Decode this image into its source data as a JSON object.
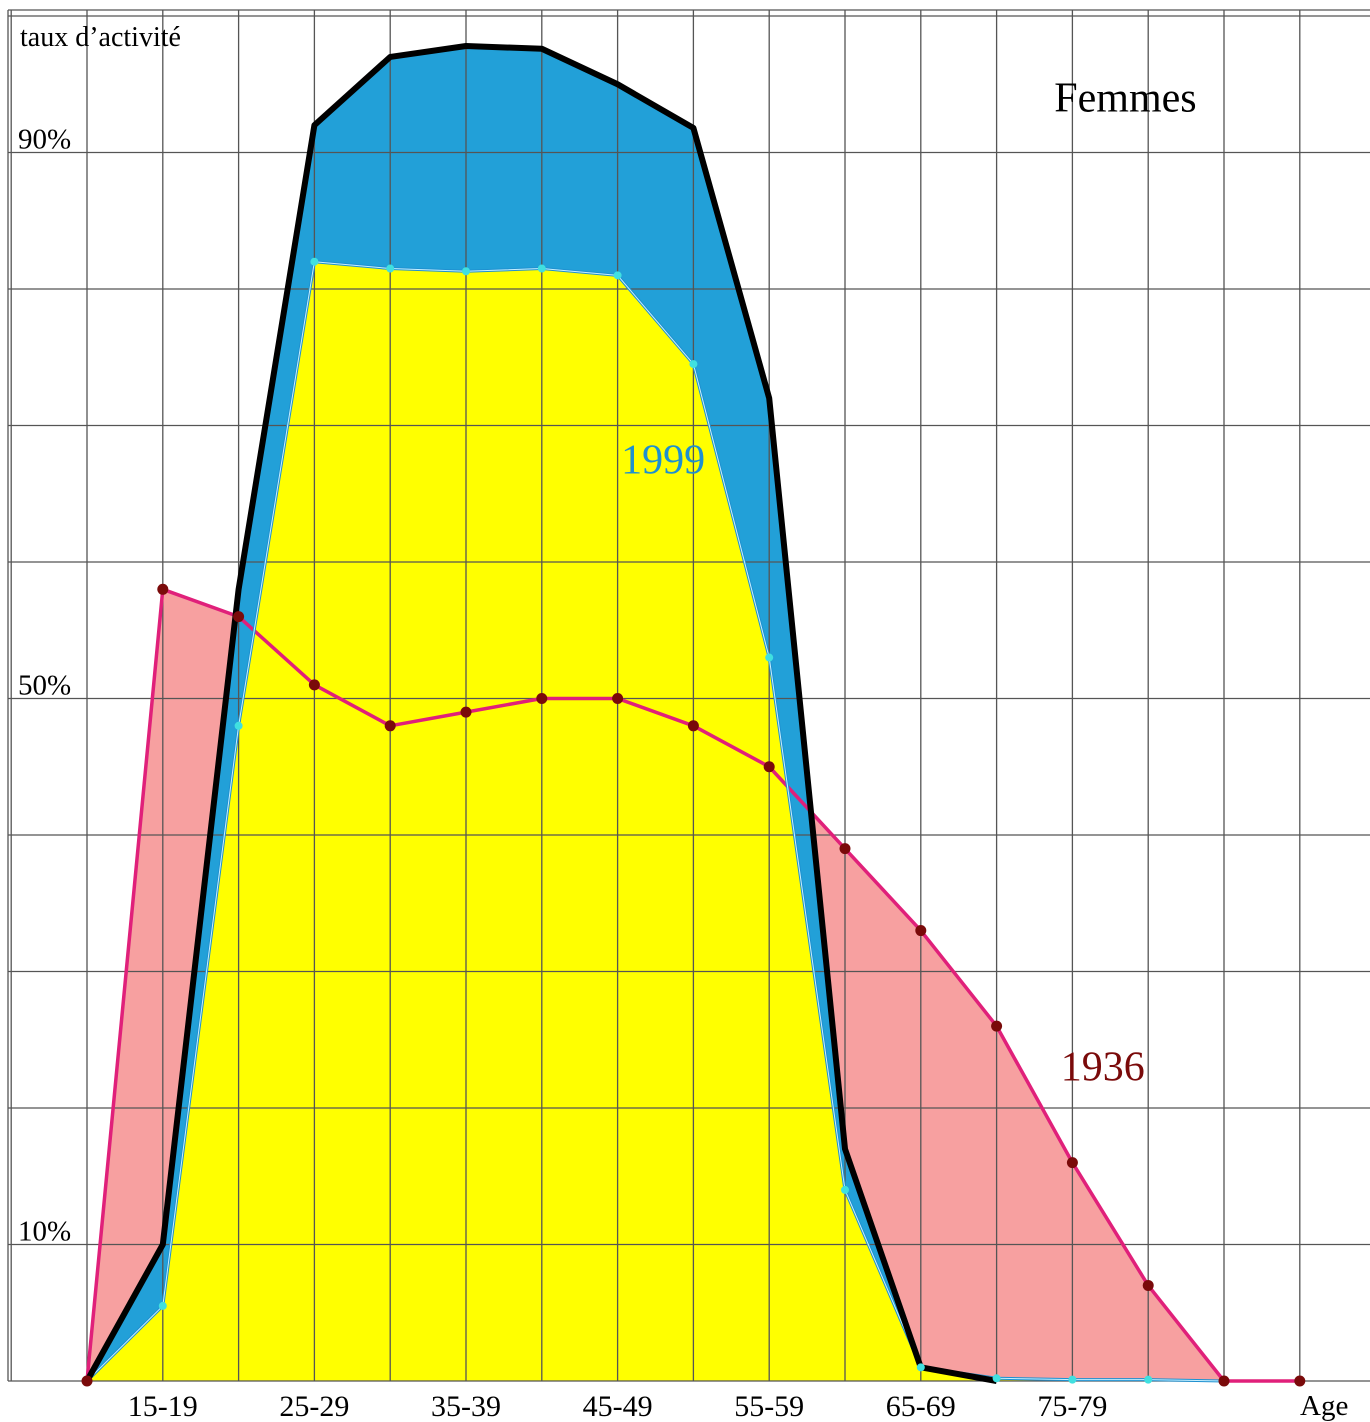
{
  "chart_data": {
    "type": "area",
    "title": "Femmes",
    "ylabel": "taux d’activité",
    "xlabel": "Age",
    "y_tick_labels": [
      {
        "value": 90,
        "label": "90%"
      },
      {
        "value": 50,
        "label": "50%"
      },
      {
        "value": 10,
        "label": "10%"
      }
    ],
    "x_tick_labels": [
      "15-19",
      "25-29",
      "35-39",
      "45-49",
      "55-59",
      "65-69",
      "75-79"
    ],
    "x_tick_positions": [
      1,
      3,
      5,
      7,
      9,
      11,
      13
    ],
    "ylim": [
      0,
      100
    ],
    "xlim": [
      0,
      16.7
    ],
    "grid": true,
    "x": [
      0,
      1,
      2,
      3,
      4,
      5,
      6,
      7,
      8,
      9,
      10,
      11,
      12,
      13,
      14,
      15,
      16
    ],
    "series": [
      {
        "name": "1936",
        "line_color": "#e0207a",
        "fill_color": "#f7a0a0",
        "marker_color": "#7a0a0a",
        "values": [
          0,
          58,
          56,
          51,
          48,
          49,
          50,
          50,
          48,
          45,
          39,
          33,
          26,
          16,
          7,
          0,
          0
        ]
      },
      {
        "name": "1999",
        "line_color": "#1e90d0",
        "fill_color": "#ffff00",
        "marker_color": "#40e0e0",
        "values": [
          0,
          5.5,
          48,
          82,
          81.5,
          81.3,
          81.5,
          81,
          74.5,
          53,
          14,
          1,
          0.2,
          0.1,
          0.1,
          0,
          null
        ]
      },
      {
        "name": "",
        "line_color": "#000000",
        "fill_color": "#22a0d8",
        "values": [
          0,
          10,
          58,
          92,
          97,
          97.8,
          97.6,
          95,
          91.8,
          72,
          17,
          1,
          0,
          null,
          null,
          null,
          null
        ]
      }
    ],
    "annotations": [
      {
        "text": "Femmes",
        "x": 13.7,
        "y": 93,
        "color": "#000000"
      },
      {
        "text": "1999",
        "x": 7.6,
        "y": 66.5,
        "color": "#1e90d0"
      },
      {
        "text": "1936",
        "x": 13.4,
        "y": 22,
        "color": "#7a0a0a"
      }
    ]
  }
}
